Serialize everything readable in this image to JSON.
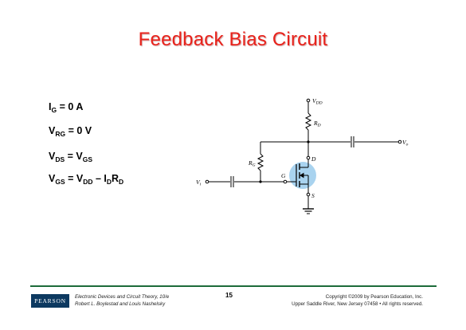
{
  "slide": {
    "title": "Feedback Bias Circuit",
    "equations": [
      {
        "parts": [
          [
            "I",
            ""
          ],
          [
            "G",
            "sub"
          ],
          [
            " = 0 A",
            ""
          ]
        ]
      },
      {
        "parts": [
          [
            "V",
            ""
          ],
          [
            "RG",
            "sub"
          ],
          [
            " = 0 V",
            ""
          ]
        ]
      },
      {
        "parts": [
          [
            "V",
            ""
          ],
          [
            "DS",
            "sub"
          ],
          [
            " = V",
            ""
          ],
          [
            "GS",
            "sub"
          ]
        ]
      },
      {
        "parts": [
          [
            "V",
            ""
          ],
          [
            "GS",
            "sub"
          ],
          [
            " = V",
            ""
          ],
          [
            "DD",
            "sub"
          ],
          [
            " – I",
            ""
          ],
          [
            "D",
            "sub"
          ],
          [
            "R",
            ""
          ],
          [
            "D",
            "sub"
          ]
        ]
      }
    ]
  },
  "circuit": {
    "labels": {
      "vdd_main": "V",
      "vdd_sub": "DD",
      "rd_main": "R",
      "rd_sub": "D",
      "vo_main": "V",
      "vo_sub": "o",
      "rg_main": "R",
      "rg_sub": "G",
      "d": "D",
      "g": "G",
      "s": "S",
      "vi_main": "V",
      "vi_sub": "i"
    },
    "colors": {
      "highlight": "#a9d3ef",
      "wire": "#000000"
    }
  },
  "footer": {
    "logo": "PEARSON",
    "book_line1": "Electronic Devices and Circuit Theory, 10/e",
    "book_line2": "Robert L. Boylestad and Louis Nashelsky",
    "page_number": "15",
    "copyright_line1": "Copyright ©2009 by Pearson Education, Inc.",
    "copyright_line2": "Upper Saddle River, New Jersey 07458 • All rights reserved.",
    "line_color": "#1d6b3a"
  }
}
